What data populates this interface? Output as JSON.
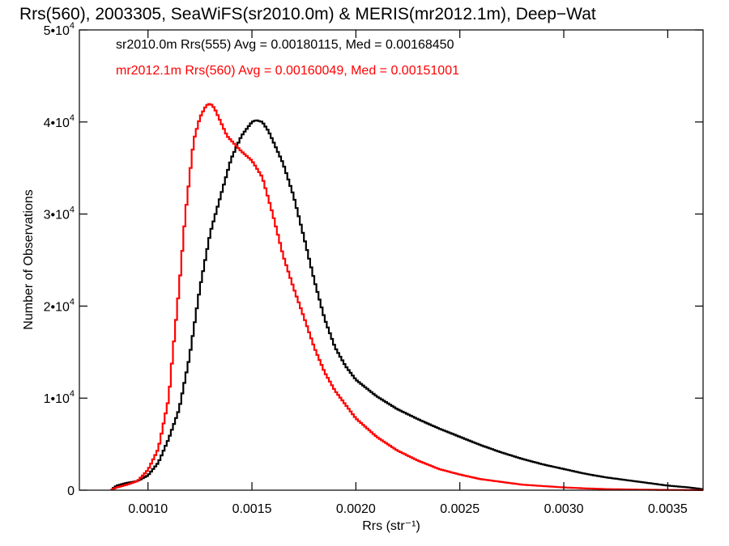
{
  "chart_data": {
    "type": "line",
    "title": "Rrs(560), 2003305, SeaWiFS(sr2010.0m) & MERIS(mr2012.1m), Deep−Wat",
    "xlabel": "Rrs (str⁻¹)",
    "ylabel": "Number of Observations",
    "xlim": [
      0.00067,
      0.00367
    ],
    "ylim": [
      0,
      50000
    ],
    "x_ticks": [
      0.001,
      0.0015,
      0.002,
      0.0025,
      0.003,
      0.0035
    ],
    "x_tick_labels": [
      "0.0010",
      "0.0015",
      "0.0020",
      "0.0025",
      "0.0030",
      "0.0035"
    ],
    "y_ticks": [
      0,
      10000,
      20000,
      30000,
      40000,
      50000
    ],
    "y_tick_labels": [
      {
        "base": "0",
        "exp": ""
      },
      {
        "base": "1•10",
        "exp": "4"
      },
      {
        "base": "2•10",
        "exp": "4"
      },
      {
        "base": "3•10",
        "exp": "4"
      },
      {
        "base": "4•10",
        "exp": "4"
      },
      {
        "base": "5•10",
        "exp": "4"
      }
    ],
    "grid": false,
    "step": true,
    "legend_position": "top-left",
    "series": [
      {
        "label": "sr2010.0m Rrs(555) Avg = 0.00180115, Med = 0.00168450",
        "color": "#000000",
        "x": [
          0.00082,
          0.00085,
          0.0009,
          0.00095,
          0.001,
          0.00105,
          0.0011,
          0.00115,
          0.0012,
          0.00125,
          0.0013,
          0.00135,
          0.0014,
          0.00145,
          0.0015,
          0.00152,
          0.00155,
          0.00158,
          0.0016,
          0.00165,
          0.0017,
          0.00175,
          0.0018,
          0.00185,
          0.0019,
          0.00195,
          0.002,
          0.0021,
          0.0022,
          0.0023,
          0.0024,
          0.0025,
          0.0026,
          0.0027,
          0.0028,
          0.0029,
          0.003,
          0.0031,
          0.0032,
          0.0033,
          0.0034,
          0.0035,
          0.0036,
          0.00367
        ],
        "y": [
          0,
          500,
          800,
          1000,
          1600,
          3000,
          5600,
          8800,
          14500,
          22000,
          28000,
          32000,
          36000,
          38500,
          40000,
          40200,
          40000,
          39000,
          38000,
          35500,
          32000,
          27500,
          22800,
          18600,
          15500,
          13500,
          12000,
          10200,
          8800,
          7700,
          6700,
          5800,
          4900,
          4100,
          3400,
          2800,
          2300,
          1800,
          1400,
          1100,
          800,
          500,
          300,
          100
        ]
      },
      {
        "label": "mr2012.1m Rrs(560) Avg = 0.00160049, Med = 0.00151001",
        "color": "#ff0000",
        "x": [
          0.00082,
          0.00085,
          0.0009,
          0.00095,
          0.001,
          0.00105,
          0.0011,
          0.00112,
          0.00115,
          0.00118,
          0.0012,
          0.00122,
          0.00125,
          0.00128,
          0.0013,
          0.00132,
          0.00135,
          0.00138,
          0.0014,
          0.00145,
          0.0015,
          0.00155,
          0.0016,
          0.00165,
          0.0017,
          0.00175,
          0.0018,
          0.00185,
          0.0019,
          0.00195,
          0.002,
          0.0021,
          0.0022,
          0.0023,
          0.0024,
          0.0025,
          0.0026,
          0.0027,
          0.0028,
          0.0029,
          0.003,
          0.0031,
          0.0032,
          0.0033,
          0.0034,
          0.0035,
          0.0036,
          0.00367
        ],
        "y": [
          0,
          300,
          600,
          1000,
          2200,
          4500,
          10000,
          15000,
          22000,
          30000,
          34000,
          38000,
          40500,
          41800,
          42000,
          41500,
          40000,
          38500,
          38000,
          36800,
          35800,
          34000,
          30000,
          25500,
          22000,
          18800,
          15500,
          12800,
          10800,
          9300,
          7800,
          5800,
          4300,
          3200,
          2300,
          1700,
          1200,
          900,
          600,
          450,
          300,
          200,
          120,
          80,
          50,
          30,
          20,
          10
        ]
      }
    ]
  }
}
